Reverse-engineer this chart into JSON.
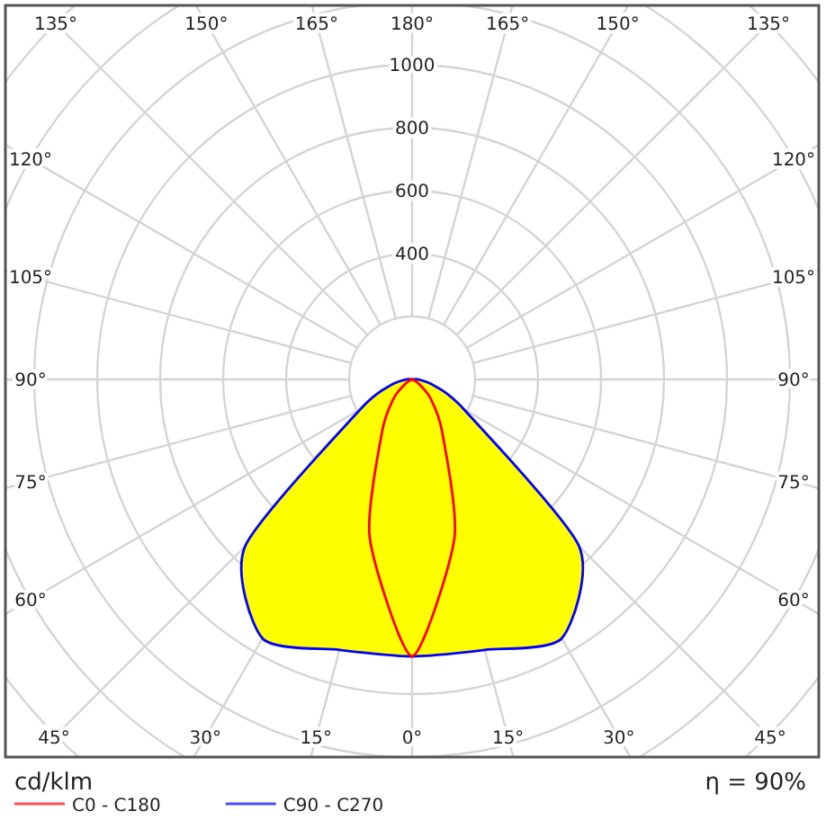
{
  "chart_data": {
    "type": "radar",
    "categories": [
      "180°",
      "165°",
      "150°",
      "135°",
      "120°",
      "105°",
      "90°",
      "75°",
      "60°",
      "45°",
      "30°",
      "15°",
      "0°",
      "15°",
      "30°",
      "45°",
      "60°",
      "75°",
      "90°",
      "105°",
      "120°",
      "135°",
      "150°",
      "165°"
    ],
    "series": [
      {
        "name": "C90 - C270",
        "color": "#0000ff",
        "values": [
          0,
          0,
          0,
          0,
          0,
          0,
          20,
          70,
          190,
          750,
          950,
          890,
          880,
          890,
          950,
          750,
          190,
          70,
          20,
          0,
          0,
          0,
          0,
          0
        ]
      },
      {
        "name": "C0 - C180",
        "color": "#ff0000",
        "values": [
          0,
          0,
          0,
          0,
          0,
          0,
          0,
          0,
          20,
          80,
          190,
          520,
          880,
          520,
          190,
          80,
          20,
          0,
          0,
          0,
          0,
          0,
          0,
          0
        ]
      }
    ],
    "ylim": [
      0,
      1600
    ],
    "yticks": [
      400,
      600,
      800,
      1000
    ],
    "ylabel": "cd/klm",
    "annotations": [
      "η = 90%"
    ],
    "grid": true,
    "legend": "bottom left"
  }
}
